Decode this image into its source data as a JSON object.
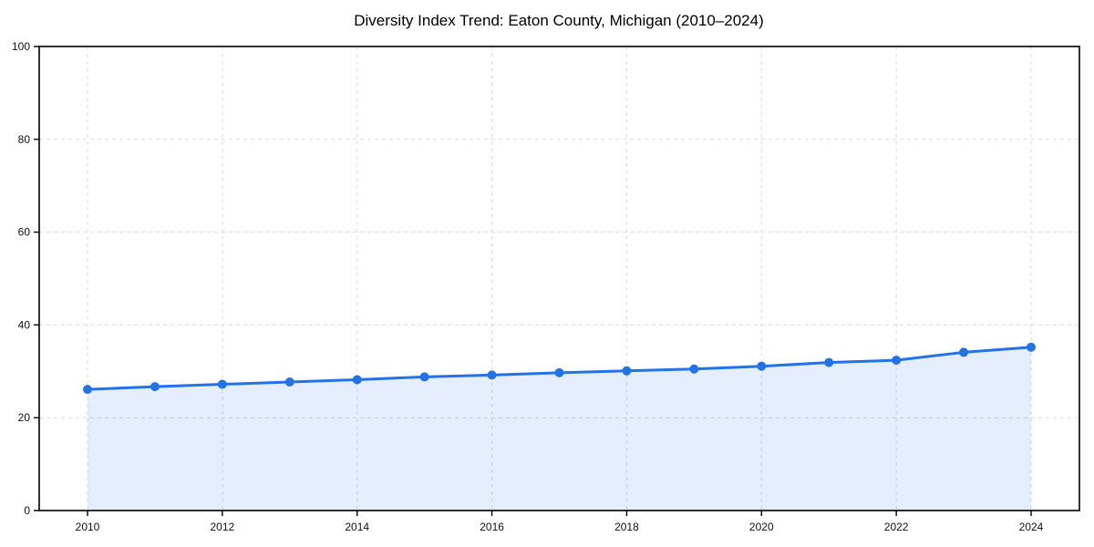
{
  "chart_data": {
    "type": "line",
    "title": "Diversity Index Trend: Eaton County, Michigan (2010–2024)",
    "x": [
      2010,
      2011,
      2012,
      2013,
      2014,
      2015,
      2016,
      2017,
      2018,
      2019,
      2020,
      2021,
      2022,
      2023,
      2024
    ],
    "series": [
      {
        "name": "Diversity Index",
        "values": [
          26.1,
          26.7,
          27.2,
          27.7,
          28.2,
          28.8,
          29.2,
          29.7,
          30.1,
          30.5,
          31.1,
          31.9,
          32.4,
          34.1,
          35.2
        ]
      }
    ],
    "xlabel": "",
    "ylabel": "",
    "ylim": [
      0,
      100
    ],
    "yticks": [
      0,
      20,
      40,
      60,
      80,
      100
    ],
    "xticks": [
      2010,
      2012,
      2014,
      2016,
      2018,
      2020,
      2022,
      2024
    ],
    "grid": true,
    "legend": "none",
    "line_color": "#2372e8",
    "fill_color": "rgba(35, 114, 232, 0.12)",
    "marker": "circle"
  }
}
